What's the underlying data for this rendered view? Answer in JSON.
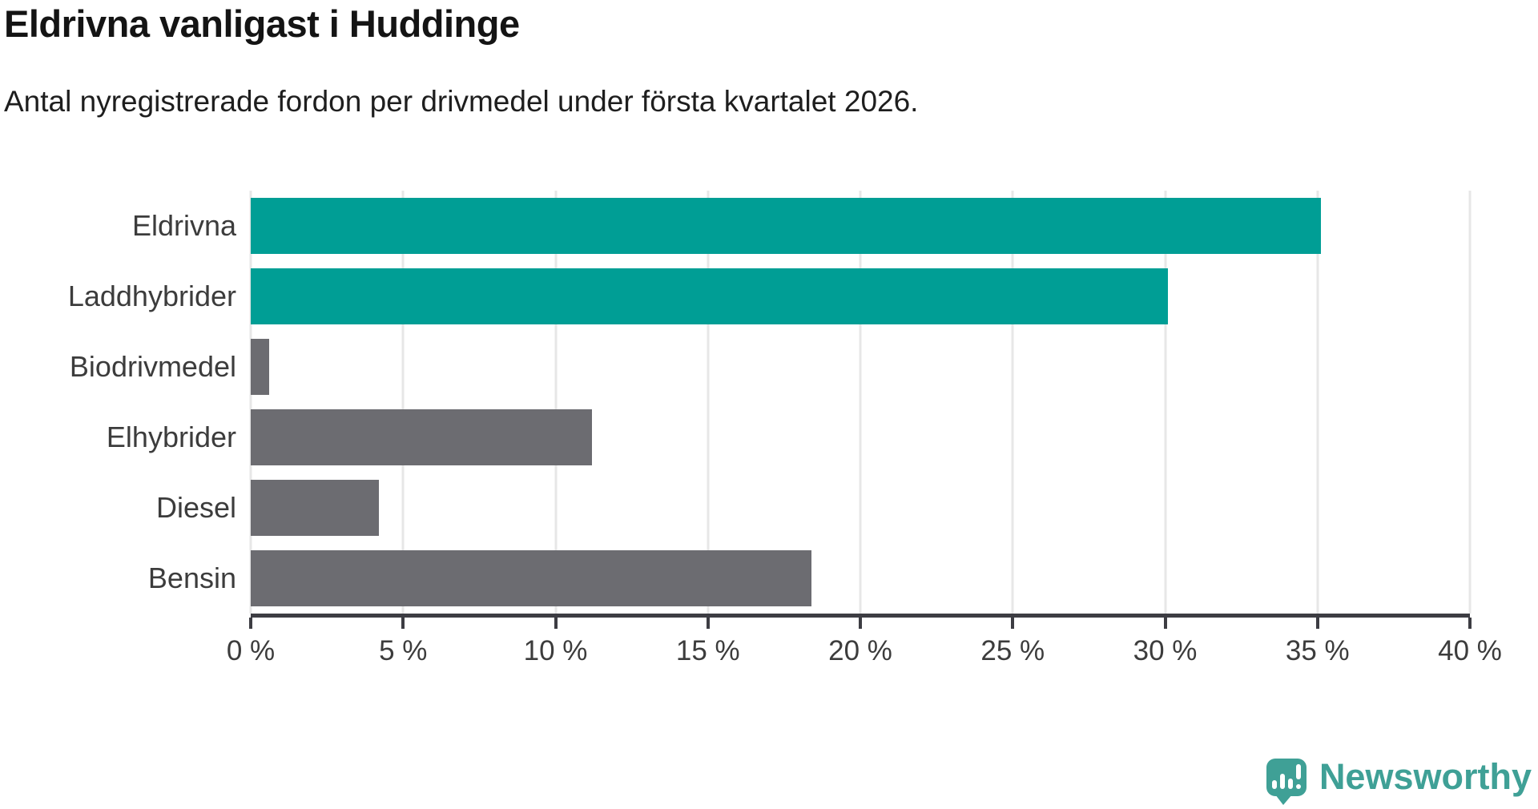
{
  "header": {
    "title": "Eldrivna vanligast i Huddinge",
    "subtitle": "Antal nyregistrerade fordon per drivmedel under första kvartalet 2026."
  },
  "chart_data": {
    "type": "bar",
    "orientation": "horizontal",
    "title": "Eldrivna vanligast i Huddinge",
    "subtitle": "Antal nyregistrerade fordon per drivmedel under första kvartalet 2026.",
    "categories": [
      "Eldrivna",
      "Laddhybrider",
      "Biodrivmedel",
      "Elhybrider",
      "Diesel",
      "Bensin"
    ],
    "values": [
      35.1,
      30.1,
      0.6,
      11.2,
      4.2,
      18.4
    ],
    "unit": "%",
    "xlim": [
      0,
      40
    ],
    "x_ticks": [
      0,
      5,
      10,
      15,
      20,
      25,
      30,
      35,
      40
    ],
    "x_tick_labels": [
      "0 %",
      "5 %",
      "10 %",
      "15 %",
      "20 %",
      "25 %",
      "30 %",
      "35 %",
      "40 %"
    ],
    "grid": true,
    "legend": false,
    "bar_colors": [
      "#009e95",
      "#009e95",
      "#6c6c71",
      "#6c6c71",
      "#6c6c71",
      "#6c6c71"
    ]
  },
  "branding": {
    "logo_text": "Newsworthy",
    "logo_icon": "newsworthy-speech-bubble-bar-chart-icon",
    "logo_color": "#3fa096"
  },
  "colors": {
    "background": "#ffffff",
    "highlight_bar": "#009e95",
    "default_bar": "#6c6c71",
    "axis": "#3d3d43",
    "gridline": "#e7e7e7",
    "label_text": "#3c3c3c",
    "title_text": "#141414"
  }
}
